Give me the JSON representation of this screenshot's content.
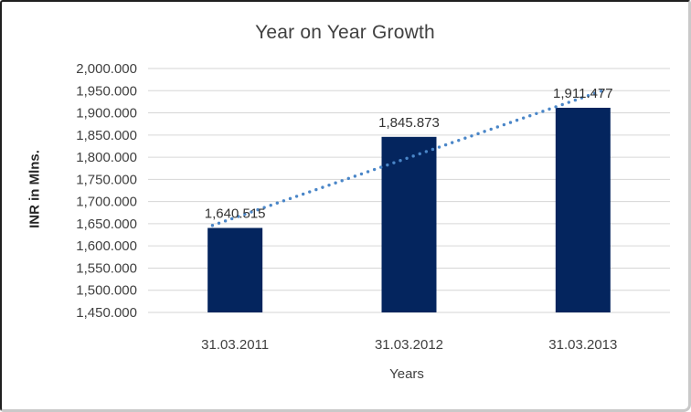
{
  "chart_data": {
    "type": "bar",
    "title": "Year on Year Growth",
    "xlabel": "Years",
    "ylabel": "INR in Mlns.",
    "categories": [
      "31.03.2011",
      "31.03.2012",
      "31.03.2013"
    ],
    "values": [
      1640.515,
      1845.873,
      1911.477
    ],
    "data_labels": [
      "1,640.515",
      "1,845.873",
      "1,911.477"
    ],
    "ylim": [
      1450,
      2000
    ],
    "ytick_step": 50,
    "ytick_labels": [
      "1,450.000",
      "1,500.000",
      "1,550.000",
      "1,600.000",
      "1,650.000",
      "1,700.000",
      "1,750.000",
      "1,800.000",
      "1,850.000",
      "1,900.000",
      "1,950.000",
      "2,000.000"
    ],
    "grid": true,
    "legend": "none",
    "bar_color": "#04255e",
    "trendline": {
      "type": "linear",
      "style": "dotted",
      "color": "#4a86c8"
    }
  },
  "colors": {
    "gridline": "#d6d6d6",
    "text": "#404040",
    "frame_dark": "#1f1f1f",
    "frame_light": "#c9c9c9",
    "background": "#ffffff"
  }
}
